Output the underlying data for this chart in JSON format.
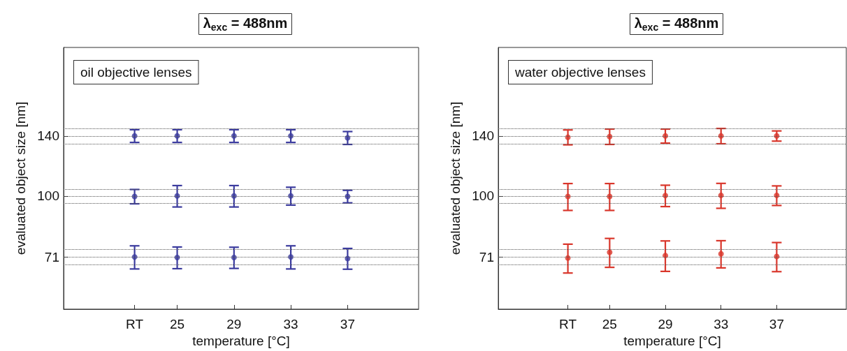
{
  "chart_data": [
    {
      "type": "scatter",
      "title": "λ$_{exc}$ = 488nm",
      "xlabel": "temperature [°C]",
      "ylabel": "evaluated object size [nm]",
      "annotations": [
        "oil objective lenses"
      ],
      "xlim": [
        17,
        42
      ],
      "xticks": [
        {
          "value": 22,
          "label": "RT"
        },
        25,
        29,
        33,
        37
      ],
      "ylim": [
        53,
        230
      ],
      "yticks": [
        71,
        100,
        140
      ],
      "log": "y",
      "grid": false,
      "marker": "circle",
      "series": [
        {
          "color": "#3b3b9e",
          "x": [
            22,
            25,
            29,
            33,
            37
          ],
          "values": [
            140,
            140,
            140,
            140,
            138.5
          ],
          "errors": [
            5,
            5,
            5,
            5,
            5
          ]
        },
        {
          "color": "#3b3b9e",
          "x": [
            22,
            25,
            29,
            33,
            37
          ],
          "values": [
            99.7,
            100,
            100,
            100,
            99.7
          ],
          "errors": [
            4,
            6,
            6,
            5,
            3.5
          ]
        },
        {
          "color": "#3b3b9e",
          "x": [
            22,
            25,
            29,
            33,
            37
          ],
          "values": [
            71,
            70.8,
            70.8,
            71,
            70.4
          ],
          "errors": [
            4.6,
            4.3,
            4.2,
            4.6,
            4.1
          ]
        }
      ],
      "ref_lines": [
        {
          "axis": "y",
          "value": 146,
          "line_style": "dotted",
          "color": "#555555"
        },
        {
          "axis": "y",
          "value": 140,
          "line_style": "dotted",
          "color": "#555555"
        },
        {
          "axis": "y",
          "value": 134,
          "line_style": "dotted",
          "color": "#555555"
        },
        {
          "axis": "y",
          "value": 104,
          "line_style": "dotted",
          "color": "#555555"
        },
        {
          "axis": "y",
          "value": 100,
          "line_style": "dotted",
          "color": "#555555"
        },
        {
          "axis": "y",
          "value": 96,
          "line_style": "dotted",
          "color": "#555555"
        },
        {
          "axis": "y",
          "value": 74,
          "line_style": "dotted",
          "color": "#555555"
        },
        {
          "axis": "y",
          "value": 71,
          "line_style": "dotted",
          "color": "#555555"
        },
        {
          "axis": "y",
          "value": 68,
          "line_style": "dotted",
          "color": "#555555"
        }
      ]
    },
    {
      "type": "scatter",
      "title": "λ$_{exc}$ = 488nm",
      "xlabel": "temperature [°C]",
      "ylabel": "evaluated object size [nm]",
      "annotations": [
        "water objective lenses"
      ],
      "xlim": [
        17,
        42
      ],
      "xticks": [
        {
          "value": 22,
          "label": "RT"
        },
        25,
        29,
        33,
        37
      ],
      "ylim": [
        53,
        230
      ],
      "yticks": [
        71,
        100,
        140
      ],
      "log": "y",
      "grid": false,
      "marker": "circle",
      "series": [
        {
          "color": "#d9362b",
          "x": [
            22,
            25,
            29,
            33,
            37
          ],
          "values": [
            139,
            139.5,
            140,
            140,
            140
          ],
          "errors": [
            5.8,
            6,
            5.5,
            6,
            4
          ]
        },
        {
          "color": "#d9362b",
          "x": [
            22,
            25,
            29,
            33,
            37
          ],
          "values": [
            99.7,
            99.7,
            100.2,
            100.3,
            100.3
          ],
          "errors": [
            7.5,
            7.5,
            6,
            7,
            5.5
          ]
        },
        {
          "color": "#d9362b",
          "x": [
            22,
            25,
            29,
            33,
            37
          ],
          "values": [
            70.6,
            72.9,
            71.6,
            72.3,
            71.2
          ],
          "errors": [
            5.7,
            5.9,
            6.1,
            5.5,
            5.8
          ]
        }
      ],
      "ref_lines": [
        {
          "axis": "y",
          "value": 146,
          "line_style": "dotted",
          "color": "#555555"
        },
        {
          "axis": "y",
          "value": 140,
          "line_style": "dotted",
          "color": "#555555"
        },
        {
          "axis": "y",
          "value": 134,
          "line_style": "dotted",
          "color": "#555555"
        },
        {
          "axis": "y",
          "value": 104,
          "line_style": "dotted",
          "color": "#555555"
        },
        {
          "axis": "y",
          "value": 100,
          "line_style": "dotted",
          "color": "#555555"
        },
        {
          "axis": "y",
          "value": 96,
          "line_style": "dotted",
          "color": "#555555"
        },
        {
          "axis": "y",
          "value": 74,
          "line_style": "dotted",
          "color": "#555555"
        },
        {
          "axis": "y",
          "value": 71,
          "line_style": "dotted",
          "color": "#555555"
        },
        {
          "axis": "y",
          "value": 68,
          "line_style": "dotted",
          "color": "#555555"
        }
      ]
    }
  ]
}
